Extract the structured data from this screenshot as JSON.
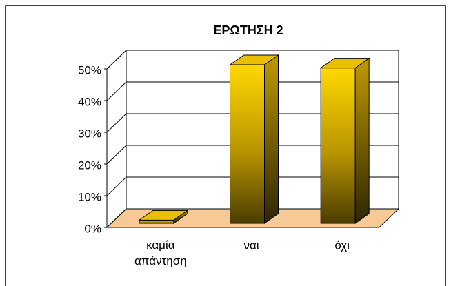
{
  "chart_data": {
    "type": "bar3d",
    "title": "ΕΡΩΤΗΣΗ 2",
    "categories": [
      "καμία απάντηση",
      "ναι",
      "όχι"
    ],
    "values": [
      1,
      50,
      49
    ],
    "color": "#f0c800",
    "ylim": [
      0,
      50
    ],
    "yticks": [
      {
        "value": 0,
        "label": "0%"
      },
      {
        "value": 10,
        "label": "10%"
      },
      {
        "value": 20,
        "label": "20%"
      },
      {
        "value": 30,
        "label": "30%"
      },
      {
        "value": 40,
        "label": "40%"
      },
      {
        "value": 50,
        "label": "50%"
      }
    ],
    "grid": true
  }
}
